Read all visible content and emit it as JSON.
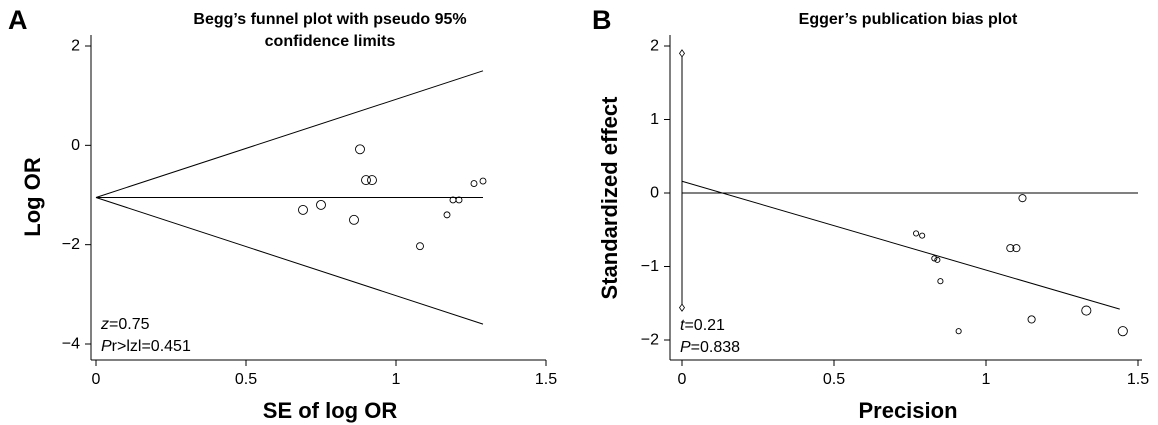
{
  "chart_data": [
    {
      "panel": "A",
      "type": "scatter",
      "title": "Begg’s funnel plot with pseudo 95%",
      "title_line2": "confidence limits",
      "xlabel": "SE of log OR",
      "ylabel": "Log OR",
      "xlim": [
        0,
        1.5
      ],
      "ylim": [
        -4.2,
        2.2
      ],
      "xticks": [
        "0",
        "0.5",
        "1",
        "1.5"
      ],
      "yticks": [
        "2",
        "0",
        "−2",
        "−4"
      ],
      "grid": false,
      "pooled_estimate": -1.05,
      "funnel_limit_at_x_max": {
        "x": 1.29,
        "upper": 1.5,
        "lower": -3.6
      },
      "points": [
        {
          "x": 0.69,
          "y": -1.3
        },
        {
          "x": 0.75,
          "y": -1.2
        },
        {
          "x": 0.86,
          "y": -1.5
        },
        {
          "x": 0.88,
          "y": -0.08
        },
        {
          "x": 0.9,
          "y": -0.7
        },
        {
          "x": 0.92,
          "y": -0.7
        },
        {
          "x": 1.08,
          "y": -2.03
        },
        {
          "x": 1.17,
          "y": -1.4
        },
        {
          "x": 1.19,
          "y": -1.1
        },
        {
          "x": 1.21,
          "y": -1.1
        },
        {
          "x": 1.26,
          "y": -0.77
        },
        {
          "x": 1.29,
          "y": -0.72
        }
      ],
      "stats": {
        "z_label": "z",
        "z_value": "=0.75",
        "p_label": "P",
        "p_value": "r>lzl=0.451"
      }
    },
    {
      "panel": "B",
      "type": "scatter",
      "title": "Egger’s publication bias plot",
      "xlabel": "Precision",
      "ylabel": "Standardized effect",
      "xlim": [
        0,
        1.5
      ],
      "ylim": [
        -2.2,
        2.2
      ],
      "xticks": [
        "0",
        "0.5",
        "1",
        "1.5"
      ],
      "yticks": [
        "2",
        "1",
        "0",
        "−1",
        "−2"
      ],
      "grid": false,
      "regression_line": {
        "intercept": 0.16,
        "end_x": 1.44,
        "end_y": -1.58
      },
      "intercept_ci": {
        "upper": 1.9,
        "lower": -1.56
      },
      "points": [
        {
          "x": 0.77,
          "y": -0.55
        },
        {
          "x": 0.79,
          "y": -0.58
        },
        {
          "x": 0.83,
          "y": -0.89
        },
        {
          "x": 0.84,
          "y": -0.91
        },
        {
          "x": 0.85,
          "y": -1.2
        },
        {
          "x": 0.91,
          "y": -1.88
        },
        {
          "x": 1.08,
          "y": -0.75
        },
        {
          "x": 1.1,
          "y": -0.75
        },
        {
          "x": 1.12,
          "y": -0.07
        },
        {
          "x": 1.15,
          "y": -1.72
        },
        {
          "x": 1.33,
          "y": -1.6
        },
        {
          "x": 1.45,
          "y": -1.88
        }
      ],
      "stats": {
        "t_label": "t",
        "t_value": "=0.21",
        "p_label": "P",
        "p_value": "=0.838"
      }
    }
  ]
}
